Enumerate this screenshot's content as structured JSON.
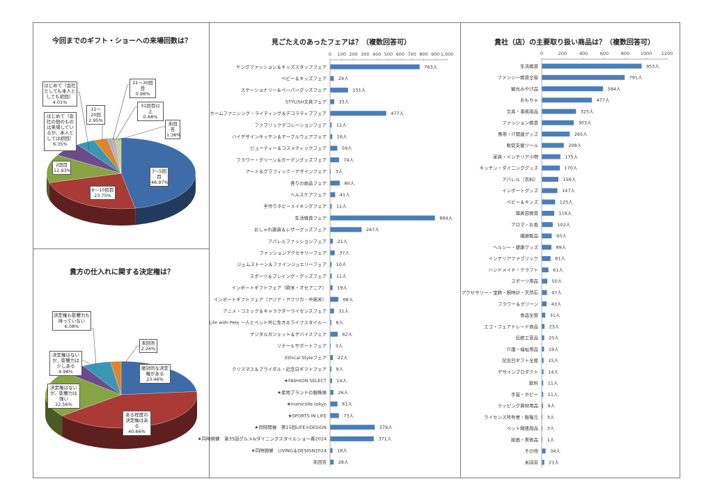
{
  "chart_data": [
    {
      "type": "pie",
      "title": "今回までのギフト・ショーへの来場回数は？",
      "slices": [
        {
          "label": "3～5回目",
          "value": 46.97,
          "text": "46.97%",
          "color": "#3d6ca8"
        },
        {
          "label": "6～10回目",
          "value": 23.75,
          "text": "23.75%",
          "color": "#a93a36"
        },
        {
          "label": "2回目",
          "value": 12.93,
          "text": "12.93%",
          "color": "#86a443"
        },
        {
          "label": "はじめて（会社の他のものは来場しているが、本人としては初回）",
          "value": 6.35,
          "text": "6.35%",
          "color": "#6b4b8e"
        },
        {
          "label": "はじめて（会社としても本人としても初回）",
          "value": 4.01,
          "text": "4.01%",
          "color": "#3997b5"
        },
        {
          "label": "11～20回",
          "value": 2.95,
          "text": "2.95%",
          "color": "#de842c"
        },
        {
          "label": "21～30回目",
          "value": 0.98,
          "text": "0.98%",
          "color": "#9ab2d8"
        },
        {
          "label": "31回目以上",
          "value": 0.68,
          "text": "0.68%",
          "color": "#d99896"
        },
        {
          "label": "未回答",
          "value": 1.36,
          "text": "1.36%",
          "color": "#c1d19a"
        }
      ]
    },
    {
      "type": "pie",
      "title": "貴方の仕入れに関する決定権は？",
      "slices": [
        {
          "label": "絶対的な決定権がある",
          "value": 23.46,
          "text": "23.46%",
          "color": "#3d6ca8"
        },
        {
          "label": "ある程度の決定権はある",
          "value": 40.66,
          "text": "40.66%",
          "color": "#a93a36"
        },
        {
          "label": "決定権はないが、影響力は強い",
          "value": 22.56,
          "text": "22.56%",
          "color": "#86a443"
        },
        {
          "label": "決定権はないが、影響力は少しある",
          "value": 4.98,
          "text": "4.98%",
          "color": "#6b4b8e"
        },
        {
          "label": "決定権も影響力も持っていない",
          "value": 6.08,
          "text": "6.08%",
          "color": "#3997b5"
        },
        {
          "label": "未回答",
          "value": 2.26,
          "text": "2.26%",
          "color": "#de842c"
        }
      ]
    },
    {
      "type": "bar",
      "orientation": "horizontal",
      "title": "見ごたえのあったフェアは？（複数回答可）",
      "unit": "人",
      "xlim": [
        0,
        1000
      ],
      "ticks": [
        "0",
        "100",
        "200",
        "300",
        "400",
        "500",
        "600",
        "700",
        "800",
        "900",
        "1,000"
      ],
      "color": "#4a7ebb",
      "categories": [
        "ヤングファッション＆キッズスタッフフェア",
        "ベビー＆キッズフェア",
        "ステーショナリー＆ペーパーグッズフェア",
        "STYLISH文具フェア",
        "ホームファニシング・ライティング＆デコラティブフェア",
        "ファブリックデコレーションフェア",
        "ハイデザインキッチン＆テーブルウェアフェア",
        "ビューティー＆コスメティックフェア",
        "フラワー・グリーン＆ガーデングッズフェア",
        "アート＆グラフィック・デザインフェア",
        "香りの商品フェア",
        "ヘルスケアフェア",
        "手作りホビーメイキングフェア",
        "生活雑貨フェア",
        "おしゃれ雑貨＆レザーグッズフェア",
        "アパレルファッションフェア",
        "ファッションアクセサリーフェア",
        "ジェムストーン＆ファインジュエリーフェア",
        "スポーツ＆プレイング・グッズフェア",
        "インポートギフトフェア（欧米・オセアニア）",
        "インポートギフトフェア（アジア・アフリカ・中南米）",
        "アニメ・コミック＆キャラクターライセンスフェア",
        "Life with Pets ～人とペット共に生きるライフスタイル～",
        "デジタルガジェット＆デバイスフェア",
        "リテールサポートフェア",
        "Ethical Styleフェア",
        "クリスマス＆ブライダル・記念日ギフトフェア",
        "★FASHION SELECT",
        "★産地ブランドの服飾展",
        "★manicolle tokyo",
        "★SPORTS IN LIFE",
        "★同時開催　第15回LIFE×DESIGN",
        "★同時開催　第35回グルメ&ダイニングスタイルショー春2024",
        "★同時開催　LIVING＆DESIGN2024",
        "未回答"
      ],
      "values": [
        763,
        29,
        151,
        33,
        477,
        11,
        16,
        59,
        74,
        3,
        80,
        41,
        11,
        894,
        267,
        21,
        37,
        10,
        11,
        19,
        68,
        31,
        8,
        62,
        3,
        22,
        9,
        14,
        26,
        61,
        73,
        379,
        371,
        18,
        28
      ]
    },
    {
      "type": "bar",
      "orientation": "horizontal",
      "title": "貴社（店）の主要取り扱い商品は？（複数回答可）",
      "unit": "人",
      "xlim": [
        0,
        1200
      ],
      "ticks": [
        "0",
        "200",
        "400",
        "600",
        "800",
        "1000",
        "1200"
      ],
      "color": "#4a7ebb",
      "categories": [
        "生活雑貨",
        "ファンシー雑貨全般",
        "観光みやげ品",
        "おもちゃ",
        "文具・事務用品",
        "ファッション雑貨",
        "携帯・IT関連グッズ",
        "販促支援ツール",
        "家具・インテリア小物",
        "キッチン・ダイニンググッズ",
        "アパレル（衣料）",
        "インポートグッズ",
        "ベビー＆キッズ",
        "理美容雑貨",
        "アロマ・お香",
        "繊維製品",
        "ヘルシー・健康グッズ",
        "インテリアファブリック",
        "ハンドメイド・クラフト",
        "スポーツ用品",
        "アクセサリー・宝飾・腕時計・天然石",
        "フラワー＆グリーン",
        "食品全般",
        "エコ・フェアトレード商品",
        "伝統工芸品",
        "介護・福祉用品",
        "記念日ギフト全般",
        "デザインプロダクト",
        "飲料",
        "手芸・ホビー",
        "ラッピング資材用品",
        "ライセンス所有者・版権元",
        "ペット関連用品",
        "絵画・美術品",
        "その他",
        "未回答"
      ],
      "values": [
        953,
        791,
        584,
        477,
        325,
        303,
        265,
        208,
        175,
        170,
        156,
        147,
        125,
        116,
        102,
        93,
        89,
        81,
        61,
        50,
        47,
        43,
        31,
        23,
        20,
        19,
        15,
        14,
        11,
        11,
        9,
        3,
        3,
        1,
        34,
        21
      ]
    }
  ]
}
